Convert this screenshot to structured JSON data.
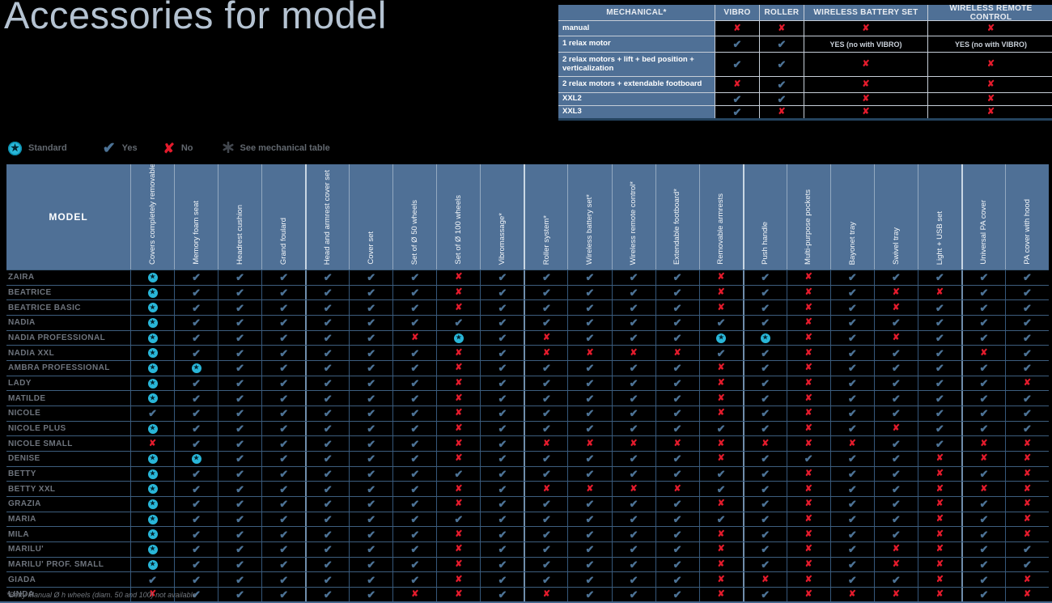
{
  "title": "Accessories for model",
  "mechanical_table": {
    "header": [
      "MECHANICAL*",
      "VIBRO",
      "ROLLER",
      "WIRELESS BATTERY SET",
      "WIRELESS REMOTE CONTROL"
    ],
    "rows": [
      {
        "label": "manual",
        "values": [
          "N",
          "N",
          "N",
          "N"
        ]
      },
      {
        "label": "1 relax motor",
        "values": [
          "Y",
          "Y",
          "YES (no with VIBRO)",
          "YES (no with VIBRO)"
        ]
      },
      {
        "label": "2 relax motors + lift + bed position + verticalization",
        "values": [
          "Y",
          "Y",
          "N",
          "N"
        ]
      },
      {
        "label": "2 relax motors + extendable footboard",
        "values": [
          "N",
          "Y",
          "N",
          "N"
        ]
      },
      {
        "label": "XXL2",
        "values": [
          "Y",
          "Y",
          "N",
          "N"
        ]
      },
      {
        "label": "XXL3",
        "values": [
          "Y",
          "N",
          "N",
          "N"
        ]
      }
    ]
  },
  "legend": {
    "items": [
      {
        "icon": "standard-star-icon",
        "label": "Standard"
      },
      {
        "icon": "yes-check-icon",
        "label": "Yes"
      },
      {
        "icon": "no-cross-icon",
        "label": "No"
      },
      {
        "icon": "see-mechanical-table-icon",
        "label": "See mechanical table"
      }
    ]
  },
  "accessories_table": {
    "model_header": "MODEL",
    "value_legend": {
      "S": "Standard",
      "Y": "Yes",
      "N": "No"
    },
    "columns": [
      "Covers completely removable",
      "Memory foam seat",
      "Headrest cushion",
      "Grand foulard",
      "Head and armrest cover set",
      "Cover set",
      "Set of Ø 50 wheels",
      "Set of Ø 100 wheels",
      "Vibromassage*",
      "Roller system*",
      "Wireless battery set*",
      "Wireless remote control*",
      "Extendable footboard*",
      "Removable armrests",
      "Push handle",
      "Multi-purpose pockets",
      "Bayonet tray",
      "Swivel tray",
      "Light + USB set",
      "Universal PA cover",
      "PA cover with hood"
    ],
    "rows": [
      {
        "model": "ZAIRA",
        "values": [
          "S",
          "Y",
          "Y",
          "Y",
          "Y",
          "Y",
          "Y",
          "N",
          "Y",
          "Y",
          "Y",
          "Y",
          "Y",
          "N",
          "Y",
          "N",
          "Y",
          "Y",
          "Y",
          "Y",
          "Y"
        ]
      },
      {
        "model": "BEATRICE",
        "values": [
          "S",
          "Y",
          "Y",
          "Y",
          "Y",
          "Y",
          "Y",
          "N",
          "Y",
          "Y",
          "Y",
          "Y",
          "Y",
          "N",
          "Y",
          "N",
          "Y",
          "N",
          "N",
          "Y",
          "Y"
        ]
      },
      {
        "model": "BEATRICE BASIC",
        "values": [
          "S",
          "Y",
          "Y",
          "Y",
          "Y",
          "Y",
          "Y",
          "N",
          "Y",
          "Y",
          "Y",
          "Y",
          "Y",
          "N",
          "Y",
          "N",
          "Y",
          "N",
          "Y",
          "Y",
          "Y"
        ]
      },
      {
        "model": "NADIA",
        "values": [
          "S",
          "Y",
          "Y",
          "Y",
          "Y",
          "Y",
          "Y",
          "Y",
          "Y",
          "Y",
          "Y",
          "Y",
          "Y",
          "Y",
          "Y",
          "N",
          "Y",
          "Y",
          "Y",
          "Y",
          "Y"
        ]
      },
      {
        "model": "NADIA PROFESSIONAL",
        "values": [
          "S",
          "Y",
          "Y",
          "Y",
          "Y",
          "Y",
          "N",
          "S",
          "Y",
          "N",
          "Y",
          "Y",
          "Y",
          "S",
          "S",
          "N",
          "Y",
          "N",
          "Y",
          "Y",
          "Y"
        ]
      },
      {
        "model": "NADIA XXL",
        "values": [
          "S",
          "Y",
          "Y",
          "Y",
          "Y",
          "Y",
          "Y",
          "N",
          "Y",
          "N",
          "N",
          "N",
          "N",
          "Y",
          "Y",
          "N",
          "Y",
          "Y",
          "Y",
          "N",
          "Y"
        ]
      },
      {
        "model": "AMBRA PROFESSIONAL",
        "values": [
          "S",
          "S",
          "Y",
          "Y",
          "Y",
          "Y",
          "Y",
          "N",
          "Y",
          "Y",
          "Y",
          "Y",
          "Y",
          "N",
          "Y",
          "N",
          "Y",
          "Y",
          "Y",
          "Y",
          "Y"
        ]
      },
      {
        "model": "LADY",
        "values": [
          "S",
          "Y",
          "Y",
          "Y",
          "Y",
          "Y",
          "Y",
          "N",
          "Y",
          "Y",
          "Y",
          "Y",
          "Y",
          "N",
          "Y",
          "N",
          "Y",
          "Y",
          "Y",
          "Y",
          "N"
        ]
      },
      {
        "model": "MATILDE",
        "values": [
          "S",
          "Y",
          "Y",
          "Y",
          "Y",
          "Y",
          "Y",
          "N",
          "Y",
          "Y",
          "Y",
          "Y",
          "Y",
          "N",
          "Y",
          "N",
          "Y",
          "Y",
          "Y",
          "Y",
          "Y"
        ]
      },
      {
        "model": "NICOLE",
        "values": [
          "Y",
          "Y",
          "Y",
          "Y",
          "Y",
          "Y",
          "Y",
          "N",
          "Y",
          "Y",
          "Y",
          "Y",
          "Y",
          "N",
          "Y",
          "N",
          "Y",
          "Y",
          "Y",
          "Y",
          "Y"
        ]
      },
      {
        "model": "NICOLE PLUS",
        "values": [
          "S",
          "Y",
          "Y",
          "Y",
          "Y",
          "Y",
          "Y",
          "N",
          "Y",
          "Y",
          "Y",
          "Y",
          "Y",
          "Y",
          "Y",
          "N",
          "Y",
          "N",
          "Y",
          "Y",
          "Y"
        ]
      },
      {
        "model": "NICOLE SMALL",
        "values": [
          "N",
          "Y",
          "Y",
          "Y",
          "Y",
          "Y",
          "Y",
          "N",
          "Y",
          "N",
          "N",
          "N",
          "N",
          "N",
          "N",
          "N",
          "N",
          "Y",
          "Y",
          "N",
          "N"
        ]
      },
      {
        "model": "DENISE",
        "values": [
          "S",
          "S",
          "Y",
          "Y",
          "Y",
          "Y",
          "Y",
          "N",
          "Y",
          "Y",
          "Y",
          "Y",
          "Y",
          "N",
          "Y",
          "Y",
          "Y",
          "Y",
          "N",
          "N",
          "N"
        ]
      },
      {
        "model": "BETTY",
        "values": [
          "S",
          "Y",
          "Y",
          "Y",
          "Y",
          "Y",
          "Y",
          "Y",
          "Y",
          "Y",
          "Y",
          "Y",
          "Y",
          "Y",
          "Y",
          "N",
          "Y",
          "Y",
          "N",
          "Y",
          "N"
        ]
      },
      {
        "model": "BETTY XXL",
        "values": [
          "S",
          "Y",
          "Y",
          "Y",
          "Y",
          "Y",
          "Y",
          "N",
          "Y",
          "N",
          "N",
          "N",
          "N",
          "Y",
          "Y",
          "N",
          "Y",
          "Y",
          "N",
          "N",
          "N"
        ]
      },
      {
        "model": "GRAZIA",
        "values": [
          "S",
          "Y",
          "Y",
          "Y",
          "Y",
          "Y",
          "Y",
          "N",
          "Y",
          "Y",
          "Y",
          "Y",
          "Y",
          "N",
          "Y",
          "N",
          "Y",
          "Y",
          "N",
          "Y",
          "N"
        ]
      },
      {
        "model": "MARIA",
        "values": [
          "S",
          "Y",
          "Y",
          "Y",
          "Y",
          "Y",
          "Y",
          "Y",
          "Y",
          "Y",
          "Y",
          "Y",
          "Y",
          "Y",
          "Y",
          "N",
          "Y",
          "Y",
          "N",
          "Y",
          "N"
        ]
      },
      {
        "model": "MILA",
        "values": [
          "S",
          "Y",
          "Y",
          "Y",
          "Y",
          "Y",
          "Y",
          "N",
          "Y",
          "Y",
          "Y",
          "Y",
          "Y",
          "N",
          "Y",
          "N",
          "Y",
          "Y",
          "N",
          "Y",
          "N"
        ]
      },
      {
        "model": "MARILU'",
        "values": [
          "S",
          "Y",
          "Y",
          "Y",
          "Y",
          "Y",
          "Y",
          "N",
          "Y",
          "Y",
          "Y",
          "Y",
          "Y",
          "N",
          "Y",
          "N",
          "Y",
          "N",
          "N",
          "Y",
          "Y"
        ]
      },
      {
        "model": "MARILU' PROF. SMALL",
        "values": [
          "S",
          "Y",
          "Y",
          "Y",
          "Y",
          "Y",
          "Y",
          "N",
          "Y",
          "Y",
          "Y",
          "Y",
          "Y",
          "N",
          "Y",
          "N",
          "Y",
          "N",
          "N",
          "Y",
          "Y"
        ]
      },
      {
        "model": "GIADA",
        "values": [
          "Y",
          "Y",
          "Y",
          "Y",
          "Y",
          "Y",
          "Y",
          "N",
          "Y",
          "Y",
          "Y",
          "Y",
          "Y",
          "N",
          "N",
          "N",
          "Y",
          "Y",
          "N",
          "Y",
          "N"
        ]
      },
      {
        "model": "LINDA",
        "values": [
          "N",
          "Y",
          "Y",
          "Y",
          "Y",
          "Y",
          "N",
          "N",
          "Y",
          "N",
          "Y",
          "Y",
          "Y",
          "N",
          "Y",
          "N",
          "N",
          "N",
          "N",
          "Y",
          "N"
        ]
      }
    ]
  },
  "footnote": "*Betty Manual Ø h wheels (diam. 50 and 100) not available",
  "colors": {
    "header_blue": "#4F7096",
    "check_blue": "#4C7295",
    "cross_red": "#E41B2C",
    "standard_cyan": "#29B6D8",
    "title_blue": "#B5C3D2"
  }
}
